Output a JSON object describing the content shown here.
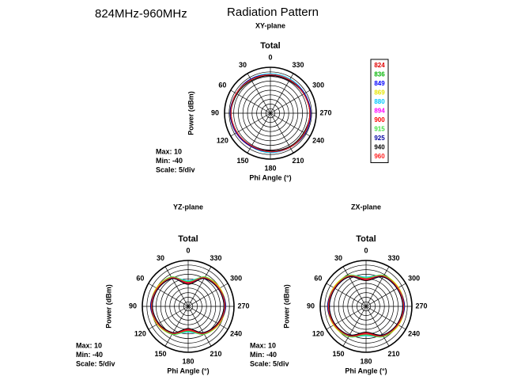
{
  "header": {
    "band": "824MHz-960MHz",
    "title": "Radiation Pattern"
  },
  "chart_data": [
    {
      "type": "polar",
      "subtitle": "XY-plane",
      "title": "Total",
      "ylabel": "Power (dBm)",
      "xlabel": "Phi Angle (°)",
      "info": [
        "Max: 10",
        "Min: -40",
        "Scale: 5/div"
      ],
      "legend": true,
      "ylim": [
        -40,
        10
      ],
      "yticks": [
        -35,
        -30,
        -25,
        -20,
        -15,
        -10,
        -5,
        0,
        5,
        10
      ],
      "xticks": [
        0,
        30,
        60,
        90,
        120,
        150,
        180,
        210,
        240,
        270,
        300,
        330
      ],
      "x": [
        0,
        30,
        60,
        90,
        120,
        150,
        180,
        210,
        240,
        270,
        300,
        330
      ],
      "series": [
        {
          "name": "824",
          "color": "#e00000",
          "values": [
            2,
            2,
            3,
            3,
            2,
            2,
            2,
            3,
            3,
            3,
            2,
            2
          ]
        },
        {
          "name": "836",
          "color": "#00b400",
          "values": [
            2,
            3,
            3,
            3,
            2,
            2,
            2,
            3,
            3,
            3,
            3,
            2
          ]
        },
        {
          "name": "849",
          "color": "#0000ff",
          "values": [
            1,
            2,
            2,
            3,
            2,
            1,
            1,
            2,
            3,
            3,
            2,
            1
          ]
        },
        {
          "name": "869",
          "color": "#e6e600",
          "values": [
            2,
            2,
            3,
            4,
            3,
            2,
            2,
            3,
            4,
            3,
            2,
            2
          ]
        },
        {
          "name": "880",
          "color": "#00c8ff",
          "values": [
            3,
            3,
            3,
            3,
            2,
            2,
            3,
            3,
            3,
            3,
            3,
            3
          ]
        },
        {
          "name": "894",
          "color": "#ff00ff",
          "values": [
            2,
            2,
            3,
            3,
            3,
            2,
            2,
            3,
            3,
            4,
            2,
            2
          ]
        },
        {
          "name": "900",
          "color": "#ff0000",
          "values": [
            1,
            2,
            3,
            3,
            2,
            2,
            1,
            2,
            3,
            3,
            2,
            1
          ]
        },
        {
          "name": "915",
          "color": "#40e040",
          "values": [
            2,
            2,
            2,
            3,
            2,
            2,
            2,
            2,
            3,
            3,
            2,
            2
          ]
        },
        {
          "name": "925",
          "color": "#0000a0",
          "values": [
            2,
            3,
            3,
            4,
            3,
            2,
            2,
            3,
            4,
            4,
            3,
            2
          ]
        },
        {
          "name": "940",
          "color": "#000000",
          "values": [
            1,
            1,
            2,
            3,
            2,
            1,
            1,
            2,
            2,
            3,
            2,
            1
          ]
        },
        {
          "name": "960",
          "color": "#ff2020",
          "values": [
            2,
            2,
            3,
            3,
            2,
            1,
            2,
            3,
            3,
            3,
            2,
            2
          ]
        }
      ]
    },
    {
      "type": "polar",
      "subtitle": "YZ-plane",
      "title": "Total",
      "ylabel": "Power (dBm)",
      "xlabel": "Phi Angle (°)",
      "info": [
        "Max: 10",
        "Min: -40",
        "Scale: 5/div"
      ],
      "legend": false,
      "ylim": [
        -40,
        10
      ],
      "yticks": [
        -35,
        -30,
        -25,
        -20,
        -15,
        -10,
        -5,
        0,
        5,
        10
      ],
      "xticks": [
        0,
        30,
        60,
        90,
        120,
        150,
        180,
        210,
        240,
        270,
        300,
        330
      ],
      "x": [
        0,
        30,
        60,
        90,
        120,
        150,
        180,
        210,
        240,
        270,
        300,
        330
      ],
      "series": [
        {
          "color": "#e00000",
          "values": [
            -14,
            -4,
            -1,
            0,
            -2,
            -6,
            -14,
            -6,
            -2,
            0,
            -1,
            -4
          ]
        },
        {
          "color": "#00b400",
          "values": [
            -13,
            -4,
            -1,
            0,
            -2,
            -5,
            -13,
            -6,
            -2,
            0,
            -1,
            -4
          ]
        },
        {
          "color": "#0000ff",
          "values": [
            -15,
            -5,
            -2,
            -1,
            -3,
            -6,
            -15,
            -7,
            -3,
            -1,
            -2,
            -5
          ]
        },
        {
          "color": "#e6e600",
          "values": [
            -14,
            -3,
            0,
            1,
            -1,
            -5,
            -14,
            -5,
            -1,
            1,
            0,
            -3
          ]
        },
        {
          "color": "#00c8ff",
          "values": [
            -12,
            -4,
            -1,
            0,
            -2,
            -6,
            -12,
            -6,
            -2,
            0,
            -1,
            -4
          ]
        },
        {
          "color": "#ff00ff",
          "values": [
            -14,
            -4,
            -2,
            0,
            -2,
            -7,
            -14,
            -6,
            -2,
            0,
            -2,
            -4
          ]
        },
        {
          "color": "#ff0000",
          "values": [
            -15,
            -4,
            -1,
            0,
            -3,
            -6,
            -15,
            -6,
            -3,
            0,
            -1,
            -4
          ]
        },
        {
          "color": "#40e040",
          "values": [
            -13,
            -3,
            -1,
            0,
            -2,
            -5,
            -13,
            -5,
            -2,
            0,
            -1,
            -3
          ]
        },
        {
          "color": "#0000a0",
          "values": [
            -14,
            -5,
            -1,
            1,
            -2,
            -6,
            -14,
            -6,
            -2,
            1,
            -1,
            -5
          ]
        },
        {
          "color": "#000000",
          "values": [
            -16,
            -5,
            -2,
            -1,
            -3,
            -7,
            -16,
            -7,
            -3,
            -1,
            -2,
            -5
          ]
        },
        {
          "color": "#ff2020",
          "values": [
            -14,
            -4,
            -1,
            0,
            -2,
            -6,
            -14,
            -6,
            -2,
            0,
            -1,
            -4
          ]
        }
      ]
    },
    {
      "type": "polar",
      "subtitle": "ZX-plane",
      "title": "Total",
      "ylabel": "Power (dBm)",
      "xlabel": "Phi Angle (°)",
      "info": [
        "Max: 10",
        "Min: -40",
        "Scale: 5/div"
      ],
      "legend": false,
      "ylim": [
        -40,
        10
      ],
      "yticks": [
        -35,
        -30,
        -25,
        -20,
        -15,
        -10,
        -5,
        0,
        5,
        10
      ],
      "xticks": [
        0,
        30,
        60,
        90,
        120,
        150,
        180,
        210,
        240,
        270,
        300,
        330
      ],
      "x": [
        0,
        30,
        60,
        90,
        120,
        150,
        180,
        210,
        240,
        270,
        300,
        330
      ],
      "series": [
        {
          "color": "#e00000",
          "values": [
            -10,
            -2,
            0,
            1,
            0,
            -3,
            -10,
            -3,
            0,
            1,
            0,
            -2
          ]
        },
        {
          "color": "#00b400",
          "values": [
            -9,
            -2,
            0,
            1,
            0,
            -3,
            -9,
            -3,
            0,
            1,
            0,
            -2
          ]
        },
        {
          "color": "#0000ff",
          "values": [
            -11,
            -3,
            -1,
            0,
            -1,
            -4,
            -11,
            -4,
            -1,
            0,
            -1,
            -3
          ]
        },
        {
          "color": "#e6e600",
          "values": [
            -10,
            -1,
            1,
            2,
            1,
            -2,
            -10,
            -2,
            1,
            2,
            1,
            -1
          ]
        },
        {
          "color": "#00c8ff",
          "values": [
            -8,
            -2,
            0,
            1,
            0,
            -3,
            -8,
            -3,
            0,
            1,
            0,
            -2
          ]
        },
        {
          "color": "#ff00ff",
          "values": [
            -10,
            -2,
            -1,
            1,
            0,
            -4,
            -10,
            -3,
            0,
            1,
            -1,
            -2
          ]
        },
        {
          "color": "#ff0000",
          "values": [
            -11,
            -2,
            0,
            1,
            -1,
            -3,
            -11,
            -3,
            -1,
            1,
            0,
            -2
          ]
        },
        {
          "color": "#40e040",
          "values": [
            -9,
            -1,
            0,
            1,
            0,
            -2,
            -9,
            -2,
            0,
            1,
            0,
            -1
          ]
        },
        {
          "color": "#0000a0",
          "values": [
            -10,
            -3,
            0,
            2,
            0,
            -3,
            -10,
            -3,
            0,
            2,
            0,
            -3
          ]
        },
        {
          "color": "#000000",
          "values": [
            -12,
            -3,
            -1,
            0,
            -1,
            -4,
            -12,
            -4,
            -1,
            0,
            -1,
            -3
          ]
        },
        {
          "color": "#ff2020",
          "values": [
            -10,
            -2,
            0,
            1,
            0,
            -3,
            -10,
            -3,
            0,
            1,
            0,
            -2
          ]
        }
      ]
    }
  ]
}
